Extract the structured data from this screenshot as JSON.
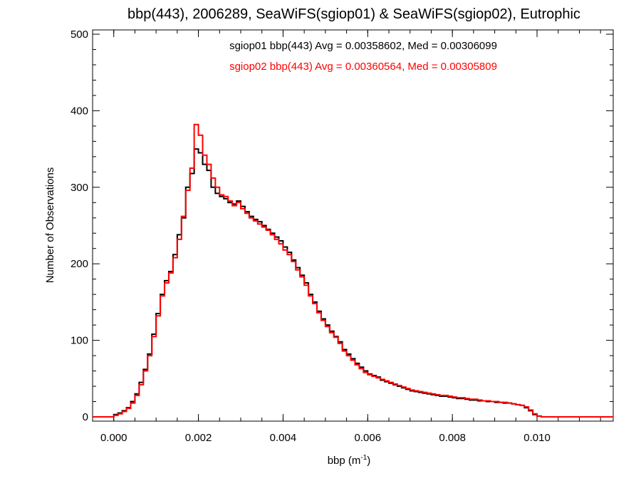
{
  "chart_data": {
    "type": "histogram",
    "title": "bbp(443), 2006289, SeaWiFS(sgiop01) & SeaWiFS(sgiop02), Eutrophic",
    "xlabel_main": "bbp (m",
    "xlabel_sup": "-1",
    "xlabel_end": ")",
    "ylabel": "Number of Observations",
    "xlim": [
      -0.0005,
      0.0118
    ],
    "ylim": [
      0,
      500
    ],
    "x_ticks": [
      0.0,
      0.002,
      0.004,
      0.006,
      0.008,
      0.01
    ],
    "x_tick_labels": [
      "0.000",
      "0.002",
      "0.004",
      "0.006",
      "0.008",
      "0.010"
    ],
    "y_ticks": [
      0,
      100,
      200,
      300,
      400,
      500
    ],
    "y_tick_labels": [
      "0",
      "100",
      "200",
      "300",
      "400",
      "500"
    ],
    "bin_start": 0.0,
    "bin_width": 0.0001,
    "legend_placement": "top-center",
    "series": [
      {
        "name": "sgiop01",
        "color": "#000000",
        "stats_text": "sgiop01 bbp(443) Avg = 0.00358602, Med = 0.00306099",
        "values": [
          3,
          5,
          8,
          12,
          20,
          30,
          45,
          62,
          82,
          108,
          135,
          160,
          178,
          190,
          212,
          238,
          260,
          300,
          318,
          350,
          345,
          330,
          322,
          300,
          292,
          288,
          285,
          280,
          278,
          282,
          275,
          268,
          262,
          258,
          255,
          250,
          245,
          240,
          235,
          230,
          222,
          215,
          205,
          195,
          185,
          175,
          160,
          150,
          138,
          128,
          120,
          112,
          105,
          98,
          88,
          82,
          76,
          70,
          65,
          60,
          56,
          54,
          52,
          48,
          46,
          44,
          42,
          40,
          38,
          36,
          34,
          33,
          32,
          31,
          30,
          29,
          28,
          27,
          27,
          26,
          25,
          24,
          24,
          23,
          22,
          22,
          21,
          21,
          20,
          20,
          19,
          19,
          18,
          18,
          17,
          16,
          15,
          12,
          8,
          3,
          1
        ]
      },
      {
        "name": "sgiop02",
        "color": "#ff0000",
        "stats_text": "sgiop02 bbp(443) Avg = 0.00360564, Med = 0.00305809",
        "values": [
          2,
          4,
          7,
          11,
          18,
          28,
          42,
          60,
          80,
          105,
          132,
          158,
          175,
          188,
          208,
          232,
          262,
          296,
          325,
          382,
          368,
          342,
          330,
          312,
          300,
          290,
          288,
          282,
          276,
          280,
          272,
          266,
          260,
          256,
          252,
          248,
          244,
          238,
          232,
          226,
          218,
          212,
          203,
          192,
          183,
          172,
          158,
          148,
          136,
          126,
          118,
          110,
          104,
          96,
          86,
          80,
          74,
          68,
          63,
          58,
          55,
          53,
          51,
          49,
          47,
          45,
          43,
          41,
          39,
          37,
          35,
          34,
          33,
          32,
          31,
          30,
          29,
          28,
          28,
          27,
          26,
          25,
          25,
          24,
          23,
          23,
          22,
          21,
          21,
          20,
          20,
          19,
          19,
          18,
          17,
          16,
          15,
          13,
          9,
          4,
          1
        ]
      }
    ]
  }
}
